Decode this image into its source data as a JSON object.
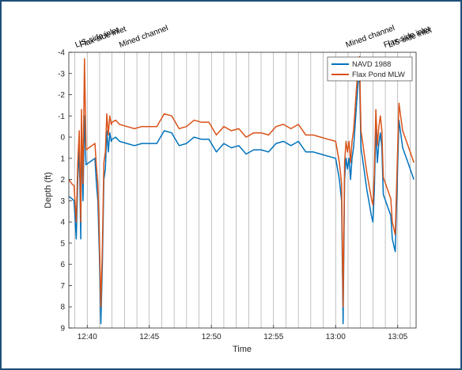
{
  "chart_data": {
    "type": "line",
    "xlabel": "Time",
    "ylabel": "Depth (ft)",
    "xlim": [
      12.642,
      13.108
    ],
    "ylim": [
      9,
      -4
    ],
    "y_reversed": true,
    "grid": "vertical-lines",
    "legend_position": "top-right",
    "x_ticks": [
      {
        "value": 12.6667,
        "label": "12:40"
      },
      {
        "value": 12.75,
        "label": "12:45"
      },
      {
        "value": 12.8333,
        "label": "12:50"
      },
      {
        "value": 12.9167,
        "label": "12:55"
      },
      {
        "value": 13.0,
        "label": "13:00"
      },
      {
        "value": 13.0833,
        "label": "13:05"
      }
    ],
    "y_ticks": [
      -4,
      -3,
      -2,
      -1,
      0,
      1,
      2,
      3,
      4,
      5,
      6,
      7,
      8,
      9
    ],
    "annotations": [
      {
        "text": "LIS-side inlet",
        "x": 12.652
      },
      {
        "text": "Flax-side inlet",
        "x": 12.658
      },
      {
        "text": "Mined channel",
        "x": 12.711
      },
      {
        "text": "Mined channel",
        "x": 13.015
      },
      {
        "text": "Flax-side inlet",
        "x": 13.066
      },
      {
        "text": "LIS-side inlet",
        "x": 13.072
      }
    ],
    "series": [
      {
        "name": "NAVD 1988",
        "color": "#0072BD",
        "x": [
          12.642,
          12.646,
          12.649,
          12.652,
          12.654,
          12.656,
          12.658,
          12.659,
          12.661,
          12.663,
          12.665,
          12.667,
          12.669,
          12.671,
          12.673,
          12.675,
          12.677,
          12.679,
          12.681,
          12.683,
          12.685,
          12.687,
          12.689,
          12.691,
          12.693,
          12.695,
          12.697,
          12.699,
          12.7,
          12.705,
          12.71,
          12.72,
          12.73,
          12.74,
          12.75,
          12.76,
          12.77,
          12.78,
          12.79,
          12.8,
          12.81,
          12.82,
          12.83,
          12.84,
          12.85,
          12.86,
          12.87,
          12.88,
          12.89,
          12.9,
          12.91,
          12.92,
          12.93,
          12.94,
          12.95,
          12.96,
          12.97,
          12.98,
          12.99,
          13.0,
          13.005,
          13.008,
          13.01,
          13.012,
          13.014,
          13.016,
          13.018,
          13.02,
          13.022,
          13.024,
          13.026,
          13.028,
          13.03,
          13.032,
          13.034,
          13.036,
          13.038,
          13.04,
          13.042,
          13.044,
          13.046,
          13.048,
          13.05,
          13.052,
          13.054,
          13.056,
          13.058,
          13.06,
          13.062,
          13.064,
          13.066,
          13.068,
          13.07,
          13.072,
          13.074,
          13.076,
          13.08,
          13.085,
          13.09,
          13.095,
          13.1,
          13.105
        ],
        "y": [
          2.8,
          2.9,
          3.0,
          4.8,
          2.0,
          0.5,
          4.8,
          -0.5,
          3.0,
          -1.0,
          1.3,
          1.25,
          1.2,
          1.15,
          1.1,
          1.05,
          1.0,
          2.2,
          3.0,
          5.5,
          8.8,
          6.0,
          2.0,
          1.5,
          -0.3,
          0.7,
          -0.2,
          0.2,
          0.1,
          0.0,
          0.2,
          0.3,
          0.4,
          0.3,
          0.3,
          0.3,
          -0.3,
          -0.2,
          0.4,
          0.3,
          0.0,
          0.1,
          0.1,
          0.7,
          0.3,
          0.5,
          0.4,
          0.8,
          0.6,
          0.6,
          0.7,
          0.3,
          0.2,
          0.4,
          0.2,
          0.7,
          0.7,
          0.8,
          0.9,
          1.0,
          2.0,
          3.0,
          8.8,
          2.0,
          1.0,
          1.5,
          1.0,
          2.0,
          1.0,
          0.5,
          -0.5,
          -1.5,
          -2.5,
          -3.0,
          0.5,
          1.0,
          1.5,
          2.0,
          2.5,
          2.9,
          3.3,
          3.7,
          4.0,
          2.5,
          -0.5,
          1.2,
          0.3,
          -0.2,
          0.5,
          2.7,
          2.9,
          3.1,
          3.3,
          3.5,
          3.7,
          4.8,
          5.4,
          -0.8,
          0.5,
          1.0,
          1.5,
          2.0
        ]
      },
      {
        "name": "Flax Pond MLW",
        "color": "#D95319",
        "x": [
          12.642,
          12.646,
          12.649,
          12.652,
          12.654,
          12.656,
          12.658,
          12.659,
          12.661,
          12.663,
          12.665,
          12.667,
          12.669,
          12.671,
          12.673,
          12.675,
          12.677,
          12.679,
          12.681,
          12.683,
          12.685,
          12.687,
          12.689,
          12.691,
          12.693,
          12.695,
          12.697,
          12.699,
          12.7,
          12.705,
          12.71,
          12.72,
          12.73,
          12.74,
          12.75,
          12.76,
          12.77,
          12.78,
          12.79,
          12.8,
          12.81,
          12.82,
          12.83,
          12.84,
          12.85,
          12.86,
          12.87,
          12.88,
          12.89,
          12.9,
          12.91,
          12.92,
          12.93,
          12.94,
          12.95,
          12.96,
          12.97,
          12.98,
          12.99,
          13.0,
          13.005,
          13.008,
          13.01,
          13.012,
          13.014,
          13.016,
          13.018,
          13.02,
          13.022,
          13.024,
          13.026,
          13.028,
          13.03,
          13.032,
          13.034,
          13.036,
          13.038,
          13.04,
          13.042,
          13.044,
          13.046,
          13.048,
          13.05,
          13.052,
          13.054,
          13.056,
          13.058,
          13.06,
          13.062,
          13.064,
          13.066,
          13.068,
          13.07,
          13.072,
          13.074,
          13.076,
          13.08,
          13.085,
          13.09,
          13.095,
          13.1,
          13.105
        ],
        "y": [
          2.0,
          2.2,
          2.3,
          4.0,
          1.2,
          -0.3,
          4.0,
          -1.3,
          2.2,
          -3.7,
          0.6,
          0.55,
          0.5,
          0.45,
          0.4,
          0.35,
          0.3,
          1.4,
          2.2,
          4.7,
          8.0,
          5.2,
          1.2,
          0.7,
          -1.1,
          -0.1,
          -1.0,
          -0.6,
          -0.7,
          -0.8,
          -0.6,
          -0.5,
          -0.4,
          -0.5,
          -0.5,
          -0.5,
          -1.1,
          -1.0,
          -0.4,
          -0.5,
          -0.8,
          -0.7,
          -0.7,
          -0.1,
          -0.5,
          -0.3,
          -0.4,
          0.0,
          -0.2,
          -0.2,
          -0.1,
          -0.5,
          -0.6,
          -0.4,
          -0.6,
          -0.1,
          -0.1,
          0.0,
          0.1,
          0.2,
          1.2,
          2.2,
          8.0,
          1.2,
          0.2,
          0.7,
          0.2,
          1.2,
          0.2,
          -0.3,
          -1.3,
          -2.3,
          -3.3,
          -3.8,
          -0.3,
          0.2,
          0.7,
          1.2,
          1.7,
          2.1,
          2.5,
          2.9,
          3.2,
          1.7,
          -1.3,
          0.4,
          -0.5,
          -1.0,
          -0.3,
          1.9,
          2.1,
          2.3,
          2.5,
          2.7,
          2.9,
          4.0,
          4.6,
          -1.6,
          -0.3,
          0.2,
          0.7,
          1.2
        ]
      }
    ]
  }
}
